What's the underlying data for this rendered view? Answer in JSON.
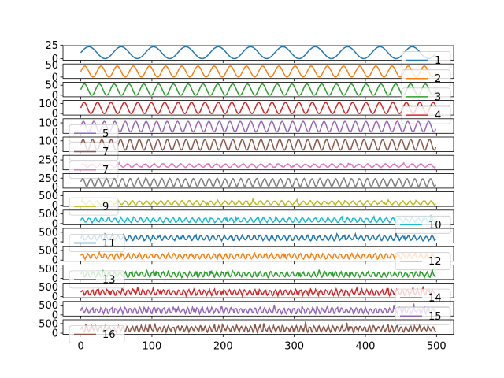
{
  "figure": {
    "panel_count": 16,
    "shared_x_ticks": [
      "0",
      "100",
      "200",
      "300",
      "400",
      "500"
    ]
  },
  "chart_data": [
    {
      "type": "line",
      "name": "1",
      "color": "#1f77b4",
      "legend": "right",
      "ylim": [
        -3,
        24
      ],
      "yticks": [
        0,
        25
      ],
      "periods": 11.0,
      "amp": 11,
      "offset": 11,
      "noise": 0.0
    },
    {
      "type": "line",
      "name": "2",
      "color": "#ff7f0e",
      "legend": "right",
      "ylim": [
        -6,
        55
      ],
      "yticks": [
        0,
        50
      ],
      "periods": 22.0,
      "amp": 23,
      "offset": 23,
      "noise": 0.0
    },
    {
      "type": "line",
      "name": "3",
      "color": "#2ca02c",
      "legend": "right",
      "ylim": [
        -8,
        65
      ],
      "yticks": [
        0,
        50
      ],
      "periods": 24.0,
      "amp": 28,
      "offset": 28,
      "noise": 0.0
    },
    {
      "type": "line",
      "name": "4",
      "color": "#d62728",
      "legend": "right",
      "ylim": [
        -15,
        130
      ],
      "yticks": [
        0,
        100
      ],
      "periods": 26.5,
      "amp": 55,
      "offset": 55,
      "noise": 0.0
    },
    {
      "type": "line",
      "name": "5",
      "color": "#9467bd",
      "legend": "left",
      "ylim": [
        -15,
        145
      ],
      "yticks": [
        0,
        100
      ],
      "periods": 34.0,
      "amp": 58,
      "offset": 58,
      "noise": 0.0
    },
    {
      "type": "line",
      "name": "7",
      "color": "#8c564b",
      "legend": "left",
      "ylim": [
        -15,
        140
      ],
      "yticks": [
        0,
        100
      ],
      "periods": 38.0,
      "amp": 57,
      "offset": 57,
      "noise": 0.0
    },
    {
      "type": "line",
      "name": "7",
      "color": "#e377c2",
      "legend": "left",
      "ylim": [
        -30,
        380
      ],
      "yticks": [
        0,
        250
      ],
      "periods": 40.0,
      "amp": 48,
      "offset": 90,
      "noise": 0.35
    },
    {
      "type": "line",
      "name": "",
      "color": "#7f7f7f",
      "legend": "none",
      "ylim": [
        -30,
        380
      ],
      "yticks": [
        0,
        250
      ],
      "periods": 45.0,
      "amp": 110,
      "offset": 130,
      "noise": 0.1
    },
    {
      "type": "line",
      "name": "9",
      "color": "#bcbd22",
      "legend": "left",
      "ylim": [
        -60,
        700
      ],
      "yticks": [
        0,
        500
      ],
      "periods": 50.0,
      "amp": 100,
      "offset": 130,
      "noise": 0.45
    },
    {
      "type": "line",
      "name": "10",
      "color": "#17becf",
      "legend": "right",
      "ylim": [
        -60,
        700
      ],
      "yticks": [
        0,
        500
      ],
      "periods": 55.0,
      "amp": 110,
      "offset": 180,
      "noise": 0.55
    },
    {
      "type": "line",
      "name": "11",
      "color": "#1f77b4",
      "legend": "left",
      "ylim": [
        -60,
        700
      ],
      "yticks": [
        0,
        500
      ],
      "periods": 60.0,
      "amp": 120,
      "offset": 200,
      "noise": 0.6
    },
    {
      "type": "line",
      "name": "12",
      "color": "#ff7f0e",
      "legend": "right",
      "ylim": [
        -60,
        700
      ],
      "yticks": [
        0,
        500
      ],
      "periods": 62.0,
      "amp": 120,
      "offset": 200,
      "noise": 0.65
    },
    {
      "type": "line",
      "name": "13",
      "color": "#2ca02c",
      "legend": "left",
      "ylim": [
        -60,
        700
      ],
      "yticks": [
        0,
        500
      ],
      "periods": 66.0,
      "amp": 120,
      "offset": 200,
      "noise": 0.7
    },
    {
      "type": "line",
      "name": "14",
      "color": "#d62728",
      "legend": "right",
      "ylim": [
        -60,
        700
      ],
      "yticks": [
        0,
        500
      ],
      "periods": 70.0,
      "amp": 130,
      "offset": 220,
      "noise": 0.75
    },
    {
      "type": "line",
      "name": "15",
      "color": "#9467bd",
      "legend": "right",
      "ylim": [
        -60,
        700
      ],
      "yticks": [
        0,
        500
      ],
      "periods": 74.0,
      "amp": 130,
      "offset": 220,
      "noise": 0.8
    },
    {
      "type": "line",
      "name": "16",
      "color": "#8c564b",
      "legend": "left",
      "ylim": [
        -60,
        700
      ],
      "yticks": [
        0,
        500
      ],
      "periods": 78.0,
      "amp": 130,
      "offset": 220,
      "noise": 0.85
    }
  ]
}
